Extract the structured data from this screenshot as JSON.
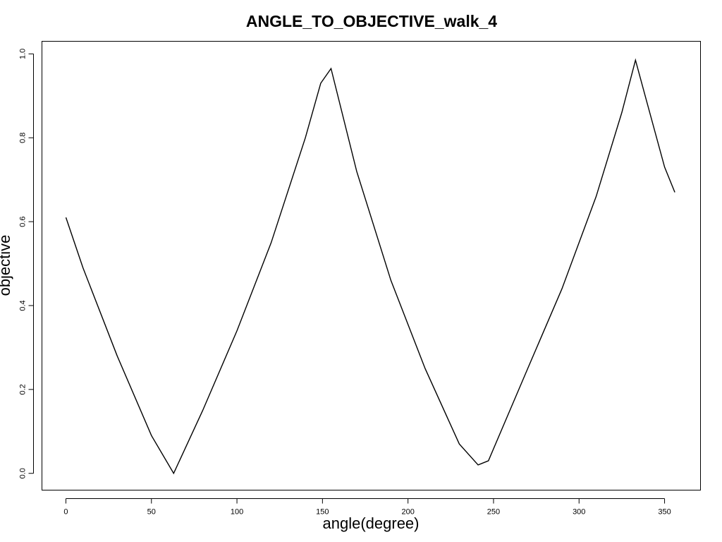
{
  "chart_data": {
    "type": "line",
    "title": "ANGLE_TO_OBJECTIVE_walk_4",
    "xlabel": "angle(degree)",
    "ylabel": "objective",
    "xlim": [
      -14,
      371
    ],
    "ylim": [
      -0.04,
      1.03
    ],
    "xticks": [
      0,
      50,
      100,
      150,
      200,
      250,
      300,
      350
    ],
    "yticks": [
      0.0,
      0.2,
      0.4,
      0.6,
      0.8,
      1.0
    ],
    "ytick_labels": [
      "0.0",
      "0.2",
      "0.4",
      "0.6",
      "0.8",
      "1.0"
    ],
    "grid": false,
    "legend": "none",
    "series": [
      {
        "x": [
          0,
          10,
          30,
          50,
          63,
          80,
          100,
          120,
          140,
          149,
          155,
          170,
          190,
          210,
          230,
          241,
          247,
          270,
          290,
          310,
          325,
          333,
          338,
          350,
          356
        ],
        "y": [
          0.61,
          0.49,
          0.28,
          0.09,
          0.0,
          0.15,
          0.34,
          0.55,
          0.8,
          0.93,
          0.965,
          0.72,
          0.46,
          0.25,
          0.07,
          0.02,
          0.03,
          0.25,
          0.44,
          0.66,
          0.86,
          0.985,
          0.91,
          0.73,
          0.67
        ]
      }
    ]
  }
}
